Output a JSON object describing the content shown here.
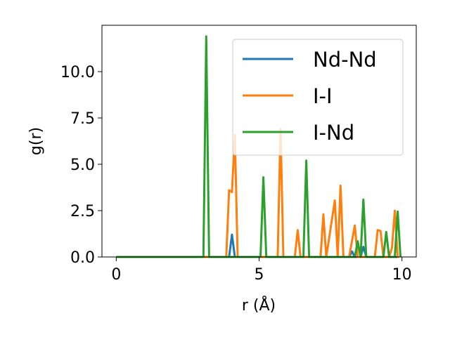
{
  "chart_data": {
    "type": "line",
    "title": "",
    "xlabel": "r (Å)",
    "ylabel": "g(r)",
    "xlim": [
      -0.5,
      10.5
    ],
    "ylim": [
      0,
      12.5
    ],
    "xticks": [
      0,
      5,
      10
    ],
    "xtick_labels": [
      "0",
      "5",
      "10"
    ],
    "yticks": [
      0.0,
      2.5,
      5.0,
      7.5,
      10.0
    ],
    "ytick_labels": [
      "0.0",
      "2.5",
      "5.0",
      "7.5",
      "10.0"
    ],
    "grid": false,
    "legend_position": "top-right",
    "series": [
      {
        "name": "Nd-Nd",
        "color": "#1f77b4",
        "x": [
          0.0,
          3.95,
          4.05,
          4.15,
          4.25,
          8.15,
          8.25,
          8.35,
          8.55,
          8.65,
          8.75,
          9.9
        ],
        "y": [
          0,
          0,
          1.2,
          0,
          0,
          0,
          0.3,
          0,
          0,
          0.55,
          0,
          0
        ]
      },
      {
        "name": "I-I",
        "color": "#ff7f0e",
        "x": [
          0.0,
          3.85,
          3.95,
          4.05,
          4.15,
          4.25,
          5.65,
          5.75,
          5.85,
          6.25,
          6.35,
          6.45,
          7.15,
          7.25,
          7.35,
          7.65,
          7.75,
          7.85,
          7.95,
          8.15,
          8.35,
          8.45,
          9.05,
          9.15,
          9.25,
          9.35,
          9.55,
          9.65,
          9.75,
          9.85,
          9.9
        ],
        "y": [
          0,
          0,
          3.6,
          3.5,
          6.6,
          0,
          0,
          6.9,
          0,
          0,
          1.45,
          0,
          0,
          2.3,
          0,
          3.05,
          0,
          3.85,
          0,
          0,
          1.7,
          0,
          0,
          1.45,
          1.4,
          0,
          0,
          0.5,
          2.5,
          0,
          0
        ]
      },
      {
        "name": "I-Nd",
        "color": "#2ca02c",
        "x": [
          0.0,
          3.05,
          3.15,
          3.25,
          5.05,
          5.15,
          5.25,
          6.55,
          6.65,
          6.75,
          8.35,
          8.45,
          8.55,
          8.65,
          8.75,
          9.35,
          9.45,
          9.55,
          9.75,
          9.85,
          9.95
        ],
        "y": [
          0,
          0,
          11.9,
          0,
          0,
          4.3,
          0,
          0,
          5.2,
          0,
          0,
          0.85,
          0,
          3.1,
          0,
          0,
          1.35,
          0,
          0,
          2.45,
          0
        ]
      }
    ]
  }
}
